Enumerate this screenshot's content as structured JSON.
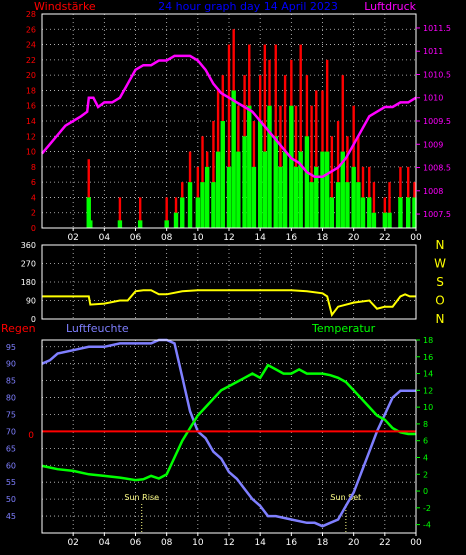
{
  "header": {
    "left_label": "Windstärke",
    "title": "24 hour graph day 14 April 2023",
    "right_label": "Luftdruck"
  },
  "colors": {
    "wind_label": "#ff0000",
    "title": "#0000ff",
    "pressure": "#ff00ff",
    "direction": "#ffff00",
    "humidity": "#7f7fff",
    "temperature": "#00ff00",
    "rain": "#ff0000",
    "gust": "#ff0000",
    "wind": "#00ff00",
    "panel_border": "#ffffff"
  },
  "x_ticks": [
    "02",
    "04",
    "06",
    "08",
    "10",
    "12",
    "14",
    "16",
    "18",
    "20",
    "22",
    "00"
  ],
  "compass": [
    "N",
    "W",
    "S",
    "O",
    "N"
  ],
  "bottom_labels": {
    "rain": "Regen",
    "humidity": "Luftfeuchte",
    "temperature": "Temperatur",
    "sunrise": "Sun Rise",
    "sunset": "Sun Set",
    "rain_value": "0"
  },
  "chart_data": [
    {
      "type": "bar",
      "title": "24 hour graph day 14 April 2023",
      "ylabel": "Windstärke",
      "y2label": "Luftdruck",
      "x_range": [
        0,
        24
      ],
      "ylim": [
        0,
        28
      ],
      "yticks": [
        0,
        2,
        4,
        6,
        8,
        10,
        12,
        14,
        16,
        18,
        20,
        22,
        24,
        26,
        28
      ],
      "y2lim": [
        1007.2,
        1011.8
      ],
      "y2ticks": [
        1007.5,
        1008,
        1008.5,
        1009,
        1009.5,
        1010,
        1010.5,
        1011,
        1011.5
      ],
      "series": [
        {
          "name": "Windstärke",
          "kind": "wind",
          "x": [
            3.0,
            3.1,
            5.0,
            6.3,
            8.0,
            8.6,
            9.0,
            9.5,
            10.0,
            10.3,
            10.6,
            11.0,
            11.3,
            11.6,
            12.0,
            12.3,
            12.6,
            13.0,
            13.3,
            13.6,
            14.0,
            14.3,
            14.6,
            15.0,
            15.3,
            15.6,
            16.0,
            16.3,
            16.6,
            17.0,
            17.3,
            17.6,
            18.0,
            18.3,
            18.6,
            19.0,
            19.3,
            19.6,
            20.0,
            20.3,
            20.6,
            21.0,
            21.3,
            22.0,
            22.3,
            23.0,
            23.5,
            23.9
          ],
          "values": [
            4,
            1,
            1,
            1,
            1,
            2,
            4,
            6,
            4,
            6,
            8,
            6,
            10,
            14,
            8,
            18,
            10,
            12,
            16,
            8,
            14,
            10,
            16,
            12,
            8,
            10,
            16,
            8,
            10,
            12,
            6,
            8,
            10,
            10,
            4,
            6,
            10,
            6,
            8,
            6,
            4,
            4,
            2,
            2,
            2,
            4,
            4,
            4
          ]
        },
        {
          "name": "Böen",
          "kind": "gust",
          "x": [
            3.0,
            3.05,
            5.0,
            6.3,
            8.0,
            8.6,
            9.0,
            9.5,
            10.0,
            10.3,
            10.6,
            11.0,
            11.3,
            11.6,
            12.0,
            12.3,
            12.6,
            13.0,
            13.3,
            13.6,
            14.0,
            14.3,
            14.6,
            15.0,
            15.3,
            15.6,
            16.0,
            16.3,
            16.6,
            17.0,
            17.3,
            17.6,
            18.0,
            18.3,
            18.6,
            19.0,
            19.3,
            19.6,
            20.0,
            20.3,
            20.6,
            21.0,
            21.3,
            22.0,
            22.3,
            23.0,
            23.5,
            23.9
          ],
          "values": [
            9,
            4,
            4,
            4,
            4,
            4,
            6,
            10,
            8,
            12,
            10,
            14,
            18,
            20,
            24,
            26,
            16,
            20,
            24,
            14,
            20,
            24,
            22,
            24,
            16,
            20,
            22,
            16,
            24,
            20,
            16,
            18,
            18,
            22,
            12,
            14,
            20,
            12,
            16,
            12,
            8,
            8,
            6,
            4,
            6,
            8,
            8,
            6
          ]
        },
        {
          "name": "Luftdruck",
          "kind": "pressure",
          "x": [
            0,
            0.5,
            1,
            1.5,
            2,
            2.5,
            2.9,
            3,
            3.3,
            3.6,
            4,
            4.5,
            5,
            5.5,
            6,
            6.5,
            7,
            7.5,
            8,
            8.5,
            9,
            9.5,
            10,
            10.5,
            11,
            11.5,
            12,
            12.5,
            13,
            13.5,
            14,
            14.5,
            15,
            15.5,
            16,
            16.5,
            17,
            17.5,
            18,
            18.5,
            19,
            19.5,
            20,
            20.5,
            21,
            21.5,
            22,
            22.5,
            23,
            23.5,
            24
          ],
          "values": [
            1008.8,
            1009.0,
            1009.2,
            1009.4,
            1009.5,
            1009.6,
            1009.7,
            1010.0,
            1010.0,
            1009.8,
            1009.9,
            1009.9,
            1010.0,
            1010.3,
            1010.6,
            1010.7,
            1010.7,
            1010.8,
            1010.8,
            1010.9,
            1010.9,
            1010.9,
            1010.8,
            1010.6,
            1010.3,
            1010.1,
            1010.0,
            1009.9,
            1009.8,
            1009.7,
            1009.5,
            1009.3,
            1009.1,
            1008.9,
            1008.7,
            1008.6,
            1008.4,
            1008.3,
            1008.3,
            1008.4,
            1008.5,
            1008.7,
            1009.0,
            1009.3,
            1009.6,
            1009.7,
            1009.8,
            1009.8,
            1009.9,
            1009.9,
            1010.0
          ]
        }
      ]
    },
    {
      "type": "line",
      "x_range": [
        0,
        24
      ],
      "ylim": [
        0,
        360
      ],
      "yticks": [
        0,
        90,
        180,
        270,
        360
      ],
      "series": [
        {
          "name": "Windrichtung",
          "x": [
            0,
            1,
            2,
            3,
            3.1,
            4,
            5,
            5.5,
            6,
            6.5,
            7,
            7.5,
            8,
            9,
            10,
            11,
            12,
            13,
            14,
            15,
            16,
            17,
            18,
            18.3,
            18.6,
            19,
            20,
            21,
            21.5,
            22,
            22.5,
            23,
            23.3,
            23.6,
            24
          ],
          "values": [
            110,
            110,
            110,
            110,
            70,
            75,
            90,
            90,
            135,
            140,
            140,
            120,
            120,
            135,
            140,
            140,
            140,
            140,
            140,
            140,
            140,
            135,
            125,
            110,
            20,
            60,
            80,
            90,
            50,
            60,
            60,
            110,
            120,
            110,
            110
          ]
        }
      ]
    },
    {
      "type": "line",
      "x_range": [
        0,
        24
      ],
      "ylim": [
        40,
        97
      ],
      "yticks": [
        45,
        50,
        55,
        60,
        65,
        70,
        75,
        80,
        85,
        90,
        95
      ],
      "y2lim": [
        -5,
        18
      ],
      "y2ticks": [
        -4,
        -2,
        0,
        2,
        4,
        6,
        8,
        10,
        12,
        14,
        16,
        18
      ],
      "series": [
        {
          "name": "Luftfeuchte",
          "axis": "left",
          "x": [
            0,
            0.5,
            1,
            2,
            3,
            4,
            5,
            6,
            7,
            7.5,
            8,
            8.5,
            9,
            9.5,
            10,
            10.5,
            11,
            11.5,
            12,
            12.5,
            13,
            13.5,
            14,
            14.5,
            15,
            16,
            17,
            17.5,
            18,
            18.5,
            19,
            19.5,
            20,
            20.5,
            21,
            21.5,
            22,
            22.5,
            23,
            23.5,
            24
          ],
          "values": [
            90,
            91,
            93,
            94,
            95,
            95,
            96,
            96,
            96,
            97,
            97,
            96,
            86,
            76,
            70,
            68,
            64,
            62,
            58,
            56,
            53,
            50,
            48,
            45,
            45,
            44,
            43,
            43,
            42,
            43,
            44,
            48,
            52,
            58,
            64,
            70,
            75,
            80,
            82,
            82,
            82
          ]
        },
        {
          "name": "Temperatur",
          "axis": "right",
          "x": [
            0,
            0.5,
            1,
            2,
            3,
            4,
            5,
            6,
            6.5,
            7,
            7.5,
            8,
            8.5,
            9,
            9.5,
            10,
            10.5,
            11,
            11.5,
            12,
            12.5,
            13,
            13.5,
            14,
            14.5,
            15,
            15.5,
            16,
            16.5,
            17,
            17.5,
            18,
            18.5,
            19,
            19.5,
            20,
            20.5,
            21,
            21.5,
            22,
            22.5,
            23,
            23.5,
            24
          ],
          "values": [
            3.0,
            2.8,
            2.6,
            2.4,
            2.0,
            1.8,
            1.6,
            1.3,
            1.4,
            1.8,
            1.5,
            2.0,
            4.0,
            6.0,
            7.5,
            9.0,
            10.0,
            11.0,
            12.0,
            12.5,
            13.0,
            13.5,
            14.0,
            13.5,
            15.0,
            14.5,
            14.0,
            14.0,
            14.5,
            14.0,
            14.0,
            14.0,
            13.8,
            13.5,
            13.0,
            12.0,
            11.0,
            10.0,
            9.0,
            8.5,
            7.5,
            7.0,
            6.8,
            6.8
          ]
        },
        {
          "name": "Regen",
          "axis": "left",
          "x": [
            0,
            24
          ],
          "values": [
            70,
            70
          ]
        }
      ],
      "annotations": [
        {
          "label": "Sun Rise",
          "x": 6.4
        },
        {
          "label": "Sun Set",
          "x": 19.5
        }
      ]
    }
  ]
}
